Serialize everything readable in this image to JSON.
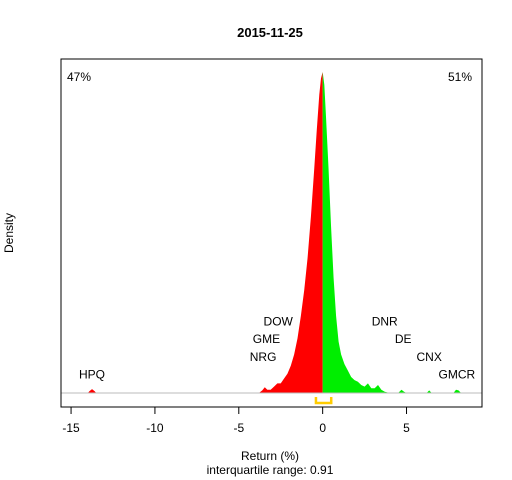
{
  "chart_data": {
    "type": "area",
    "title": "2015-11-25",
    "xlabel": "Return (%)",
    "subtitle": "interquartile range: 0.91",
    "ylabel": "Density",
    "xlim": [
      -15.6,
      9.5
    ],
    "ylim": [
      0,
      1
    ],
    "x_ticks": [
      -15,
      -10,
      -5,
      0,
      5
    ],
    "pct_negative": "47%",
    "pct_positive": "51%",
    "colors": {
      "negative": "#ff0000",
      "positive": "#00ee00",
      "negative_text": "#ff0000",
      "positive_text": "#008000",
      "iqr": "#ffcc00",
      "baseline": "#bbbbbb"
    },
    "iqr": [
      -0.4,
      0.51
    ],
    "density": [
      [
        -14.0,
        0.0
      ],
      [
        -13.9,
        0.006
      ],
      [
        -13.75,
        0.012
      ],
      [
        -13.6,
        0.006
      ],
      [
        -13.5,
        0.0
      ],
      [
        -3.8,
        0.0
      ],
      [
        -3.6,
        0.008
      ],
      [
        -3.45,
        0.018
      ],
      [
        -3.3,
        0.01
      ],
      [
        -3.1,
        0.01
      ],
      [
        -2.9,
        0.02
      ],
      [
        -2.7,
        0.03
      ],
      [
        -2.5,
        0.03
      ],
      [
        -2.3,
        0.045
      ],
      [
        -2.1,
        0.06
      ],
      [
        -1.9,
        0.085
      ],
      [
        -1.7,
        0.12
      ],
      [
        -1.5,
        0.17
      ],
      [
        -1.3,
        0.24
      ],
      [
        -1.1,
        0.32
      ],
      [
        -0.9,
        0.42
      ],
      [
        -0.7,
        0.55
      ],
      [
        -0.5,
        0.7
      ],
      [
        -0.35,
        0.82
      ],
      [
        -0.2,
        0.93
      ],
      [
        -0.1,
        0.98
      ],
      [
        0.0,
        1.0
      ],
      [
        0.1,
        0.96
      ],
      [
        0.2,
        0.86
      ],
      [
        0.35,
        0.7
      ],
      [
        0.5,
        0.52
      ],
      [
        0.65,
        0.36
      ],
      [
        0.8,
        0.24
      ],
      [
        0.95,
        0.16
      ],
      [
        1.1,
        0.12
      ],
      [
        1.3,
        0.09
      ],
      [
        1.5,
        0.07
      ],
      [
        1.7,
        0.05
      ],
      [
        1.9,
        0.04
      ],
      [
        2.1,
        0.035
      ],
      [
        2.3,
        0.025
      ],
      [
        2.5,
        0.02
      ],
      [
        2.7,
        0.03
      ],
      [
        2.9,
        0.015
      ],
      [
        3.1,
        0.015
      ],
      [
        3.3,
        0.025
      ],
      [
        3.5,
        0.01
      ],
      [
        3.7,
        0.004
      ],
      [
        4.0,
        0.0
      ],
      [
        4.5,
        0.0
      ],
      [
        4.7,
        0.01
      ],
      [
        4.85,
        0.004
      ],
      [
        5.0,
        0.0
      ],
      [
        6.2,
        0.0
      ],
      [
        6.35,
        0.008
      ],
      [
        6.5,
        0.0
      ],
      [
        7.8,
        0.0
      ],
      [
        7.95,
        0.01
      ],
      [
        8.1,
        0.008
      ],
      [
        8.25,
        0.0
      ]
    ],
    "annotations": [
      {
        "text": "HPQ",
        "x": -13.75,
        "y": 0.045
      },
      {
        "text": "NRG",
        "x": -3.55,
        "y": 0.1
      },
      {
        "text": "GME",
        "x": -3.35,
        "y": 0.155
      },
      {
        "text": "DOW",
        "x": -2.65,
        "y": 0.21
      },
      {
        "text": "DNR",
        "x": 3.7,
        "y": 0.21
      },
      {
        "text": "DE",
        "x": 4.8,
        "y": 0.155
      },
      {
        "text": "CNX",
        "x": 6.35,
        "y": 0.1
      },
      {
        "text": "GMCR",
        "x": 8.0,
        "y": 0.045
      }
    ]
  }
}
